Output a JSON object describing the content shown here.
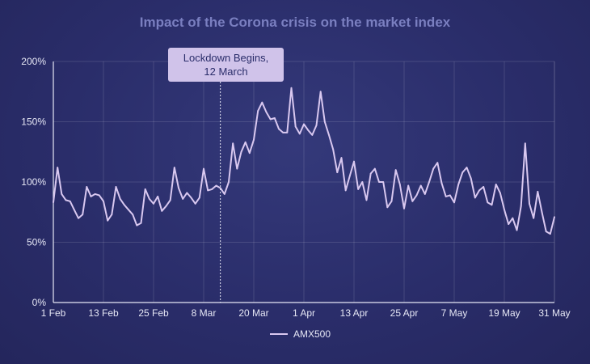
{
  "chart_data": {
    "type": "line",
    "title": "Impact of the Corona crisis on the market index",
    "x_tick_labels": [
      "1 Feb",
      "13 Feb",
      "25 Feb",
      "8 Mar",
      "20 Mar",
      "1 Apr",
      "13 Apr",
      "25 Apr",
      "7 May",
      "19 May",
      "31 May"
    ],
    "y_tick_labels": [
      "0%",
      "50%",
      "100%",
      "150%",
      "200%"
    ],
    "ylim": [
      0,
      200
    ],
    "xlim": [
      "2020-02-01",
      "2020-05-31"
    ],
    "grid": true,
    "legend_position": "bottom",
    "annotation": {
      "line1": "Lockdown Begins,",
      "line2": "12 March",
      "x": "2020-03-12"
    },
    "series": [
      {
        "name": "AMX500",
        "color": "#d9c8f0",
        "points": [
          [
            "2020-02-01",
            83
          ],
          [
            "2020-02-02",
            112
          ],
          [
            "2020-02-03",
            90
          ],
          [
            "2020-02-04",
            85
          ],
          [
            "2020-02-05",
            84
          ],
          [
            "2020-02-06",
            77
          ],
          [
            "2020-02-07",
            70
          ],
          [
            "2020-02-08",
            73
          ],
          [
            "2020-02-09",
            96
          ],
          [
            "2020-02-10",
            88
          ],
          [
            "2020-02-11",
            90
          ],
          [
            "2020-02-12",
            89
          ],
          [
            "2020-02-13",
            84
          ],
          [
            "2020-02-14",
            68
          ],
          [
            "2020-02-15",
            73
          ],
          [
            "2020-02-16",
            96
          ],
          [
            "2020-02-17",
            86
          ],
          [
            "2020-02-18",
            81
          ],
          [
            "2020-02-19",
            77
          ],
          [
            "2020-02-20",
            73
          ],
          [
            "2020-02-21",
            64
          ],
          [
            "2020-02-22",
            66
          ],
          [
            "2020-02-23",
            94
          ],
          [
            "2020-02-24",
            86
          ],
          [
            "2020-02-25",
            82
          ],
          [
            "2020-02-26",
            88
          ],
          [
            "2020-02-27",
            76
          ],
          [
            "2020-02-28",
            80
          ],
          [
            "2020-02-29",
            85
          ],
          [
            "2020-03-01",
            112
          ],
          [
            "2020-03-02",
            95
          ],
          [
            "2020-03-03",
            86
          ],
          [
            "2020-03-04",
            91
          ],
          [
            "2020-03-05",
            87
          ],
          [
            "2020-03-06",
            82
          ],
          [
            "2020-03-07",
            87
          ],
          [
            "2020-03-08",
            111
          ],
          [
            "2020-03-09",
            93
          ],
          [
            "2020-03-10",
            94
          ],
          [
            "2020-03-11",
            97
          ],
          [
            "2020-03-12",
            95
          ],
          [
            "2020-03-13",
            90
          ],
          [
            "2020-03-14",
            100
          ],
          [
            "2020-03-15",
            132
          ],
          [
            "2020-03-16",
            111
          ],
          [
            "2020-03-17",
            125
          ],
          [
            "2020-03-18",
            133
          ],
          [
            "2020-03-19",
            124
          ],
          [
            "2020-03-20",
            135
          ],
          [
            "2020-03-21",
            159
          ],
          [
            "2020-03-22",
            166
          ],
          [
            "2020-03-23",
            158
          ],
          [
            "2020-03-24",
            152
          ],
          [
            "2020-03-25",
            153
          ],
          [
            "2020-03-26",
            144
          ],
          [
            "2020-03-27",
            141
          ],
          [
            "2020-03-28",
            141
          ],
          [
            "2020-03-29",
            178
          ],
          [
            "2020-03-30",
            146
          ],
          [
            "2020-03-31",
            140
          ],
          [
            "2020-04-01",
            148
          ],
          [
            "2020-04-02",
            143
          ],
          [
            "2020-04-03",
            139
          ],
          [
            "2020-04-04",
            147
          ],
          [
            "2020-04-05",
            175
          ],
          [
            "2020-04-06",
            150
          ],
          [
            "2020-04-07",
            139
          ],
          [
            "2020-04-08",
            127
          ],
          [
            "2020-04-09",
            108
          ],
          [
            "2020-04-10",
            120
          ],
          [
            "2020-04-11",
            93
          ],
          [
            "2020-04-12",
            105
          ],
          [
            "2020-04-13",
            117
          ],
          [
            "2020-04-14",
            94
          ],
          [
            "2020-04-15",
            100
          ],
          [
            "2020-04-16",
            85
          ],
          [
            "2020-04-17",
            107
          ],
          [
            "2020-04-18",
            111
          ],
          [
            "2020-04-19",
            100
          ],
          [
            "2020-04-20",
            100
          ],
          [
            "2020-04-21",
            79
          ],
          [
            "2020-04-22",
            84
          ],
          [
            "2020-04-23",
            110
          ],
          [
            "2020-04-24",
            98
          ],
          [
            "2020-04-25",
            78
          ],
          [
            "2020-04-26",
            97
          ],
          [
            "2020-04-27",
            84
          ],
          [
            "2020-04-28",
            89
          ],
          [
            "2020-04-29",
            97
          ],
          [
            "2020-04-30",
            90
          ],
          [
            "2020-05-01",
            100
          ],
          [
            "2020-05-02",
            111
          ],
          [
            "2020-05-03",
            116
          ],
          [
            "2020-05-04",
            99
          ],
          [
            "2020-05-05",
            88
          ],
          [
            "2020-05-06",
            89
          ],
          [
            "2020-05-07",
            83
          ],
          [
            "2020-05-08",
            98
          ],
          [
            "2020-05-09",
            108
          ],
          [
            "2020-05-10",
            112
          ],
          [
            "2020-05-11",
            103
          ],
          [
            "2020-05-12",
            87
          ],
          [
            "2020-05-13",
            93
          ],
          [
            "2020-05-14",
            96
          ],
          [
            "2020-05-15",
            83
          ],
          [
            "2020-05-16",
            81
          ],
          [
            "2020-05-17",
            98
          ],
          [
            "2020-05-18",
            91
          ],
          [
            "2020-05-19",
            77
          ],
          [
            "2020-05-20",
            65
          ],
          [
            "2020-05-21",
            70
          ],
          [
            "2020-05-22",
            60
          ],
          [
            "2020-05-23",
            80
          ],
          [
            "2020-05-24",
            132
          ],
          [
            "2020-05-25",
            82
          ],
          [
            "2020-05-26",
            70
          ],
          [
            "2020-05-27",
            92
          ],
          [
            "2020-05-28",
            75
          ],
          [
            "2020-05-29",
            59
          ],
          [
            "2020-05-30",
            57
          ],
          [
            "2020-05-31",
            71
          ]
        ]
      }
    ]
  }
}
